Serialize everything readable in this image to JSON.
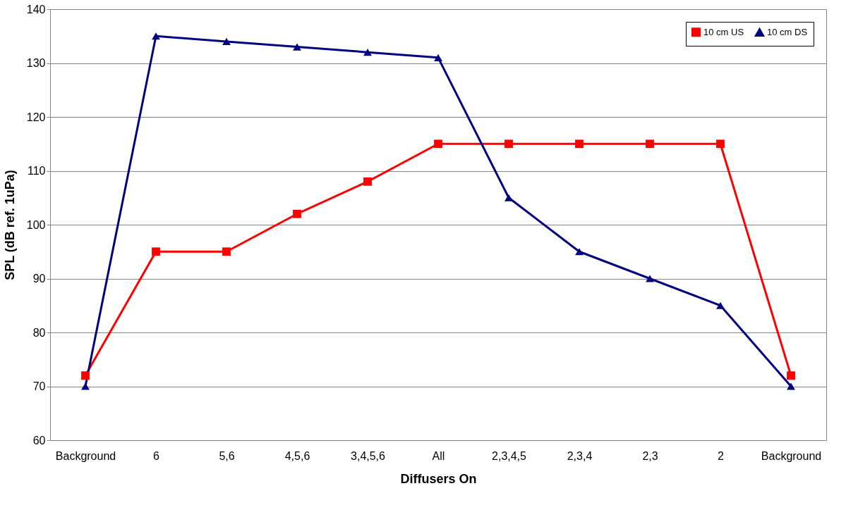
{
  "chart_data": {
    "type": "line",
    "xlabel": "Diffusers On",
    "ylabel": "SPL (dB ref. 1uPa)",
    "categories": [
      "Background",
      "6",
      "5,6",
      "4,5,6",
      "3,4,5,6",
      "All",
      "2,3,4,5",
      "2,3,4",
      "2,3",
      "2",
      "Background"
    ],
    "series": [
      {
        "name": "10 cm US",
        "color": "#ff0000",
        "marker": "square",
        "values": [
          72,
          95,
          95,
          102,
          108,
          115,
          115,
          115,
          115,
          115,
          72
        ]
      },
      {
        "name": "10 cm DS",
        "color": "#000080",
        "marker": "triangle",
        "values": [
          70,
          135,
          134,
          133,
          132,
          131,
          105,
          95,
          90,
          85,
          70
        ]
      }
    ],
    "ylim": [
      60,
      140
    ],
    "yticks": [
      60,
      70,
      80,
      90,
      100,
      110,
      120,
      130,
      140
    ],
    "grid": "y",
    "legend": "top right",
    "line_style": "solid"
  }
}
